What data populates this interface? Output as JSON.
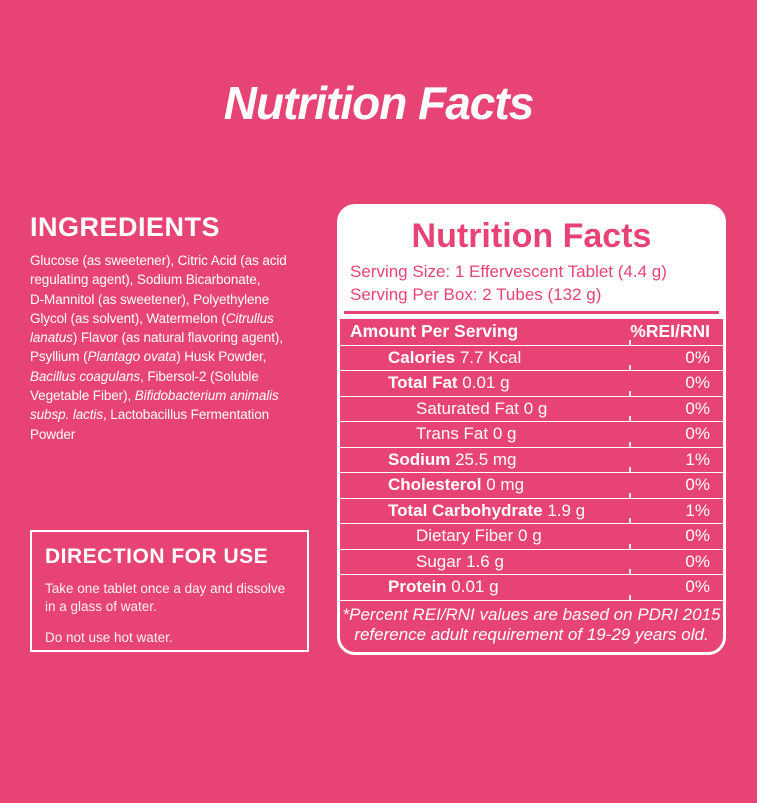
{
  "page": {
    "background_color": "#E74374",
    "title": "Nutrition Facts"
  },
  "ingredients": {
    "heading": "INGREDIENTS",
    "segments": [
      {
        "text": "Glucose (as sweetener), Citric Acid (as acid\nregulating agent), Sodium Bicarbonate,\nD-Mannitol (as sweetener), Polyethylene\nGlycol (as solvent), Watermelon (",
        "italic": false
      },
      {
        "text": "Citrullus\nlanatus",
        "italic": true
      },
      {
        "text": ") Flavor (as natural flavoring agent),\nPsyllium (",
        "italic": false
      },
      {
        "text": "Plantago ovata",
        "italic": true
      },
      {
        "text": ") Husk Powder,\n",
        "italic": false
      },
      {
        "text": "Bacillus coagulans",
        "italic": true
      },
      {
        "text": ", Fibersol-2 (Soluble\nVegetable Fiber), ",
        "italic": false
      },
      {
        "text": "Bifidobacterium animalis\nsubsp. lactis",
        "italic": true
      },
      {
        "text": ", Lactobacillus Fermentation\nPowder",
        "italic": false
      }
    ]
  },
  "directions": {
    "heading": "DIRECTION FOR USE",
    "paragraphs": [
      "Take one tablet once a day and dissolve\nin a glass of water.",
      "Do not use hot water."
    ]
  },
  "nutrition_panel": {
    "title": "Nutrition Facts",
    "serving_size": "Serving Size: 1 Effervescent Tablet (4.4 g)",
    "serving_per_box": "Serving Per Box: 2 Tubes (132 g)",
    "table": {
      "header": {
        "amount": "Amount Per Serving",
        "percent": "%REI/RNI"
      },
      "rows": [
        {
          "bold": "Calories",
          "rest": "7.7 Kcal",
          "percent": "0%",
          "indent": "main"
        },
        {
          "bold": "Total Fat",
          "rest": "0.01 g",
          "percent": "0%",
          "indent": "main"
        },
        {
          "bold": "",
          "rest": "Saturated Fat 0 g",
          "percent": "0%",
          "indent": "sub"
        },
        {
          "bold": "",
          "rest": "Trans Fat 0 g",
          "percent": "0%",
          "indent": "sub"
        },
        {
          "bold": "Sodium",
          "rest": "25.5 mg",
          "percent": "1%",
          "indent": "main"
        },
        {
          "bold": "Cholesterol",
          "rest": "0 mg",
          "percent": "0%",
          "indent": "main"
        },
        {
          "bold": "Total Carbohydrate",
          "rest": "1.9 g",
          "percent": "1%",
          "indent": "main"
        },
        {
          "bold": "",
          "rest": "Dietary Fiber 0 g",
          "percent": "0%",
          "indent": "sub"
        },
        {
          "bold": "",
          "rest": "Sugar 1.6 g",
          "percent": "0%",
          "indent": "sub"
        },
        {
          "bold": "Protein",
          "rest": "0.01 g",
          "percent": "0%",
          "indent": "main"
        }
      ],
      "footnote": "*Percent REI/RNI values are based on PDRI 2015\nreference adult requirement of 19-29 years old."
    }
  },
  "colors": {
    "pink": "#E74374",
    "white": "#FFFFFF"
  }
}
